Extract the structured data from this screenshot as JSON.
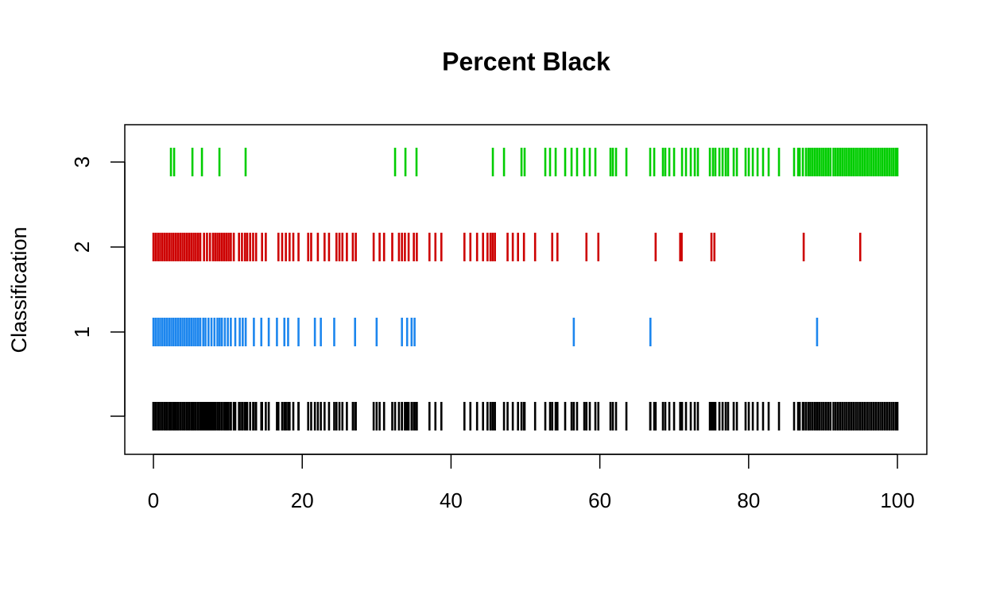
{
  "chart_data": {
    "type": "strip",
    "title": "Percent Black",
    "y_label": "Classification",
    "categories": [
      null,
      "1",
      "2",
      "3"
    ],
    "combined_color": "#000000",
    "xlim": [
      -3.85,
      103.95
    ],
    "xticks": [
      0,
      20,
      40,
      60,
      80,
      100
    ],
    "series": [
      {
        "color": "#1C86EE",
        "values": [
          0,
          0.3,
          0.6,
          0.9,
          1.2,
          1.5,
          1.8,
          2.1,
          2.4,
          2.7,
          3.0,
          3.3,
          3.6,
          3.9,
          4.2,
          4.5,
          4.8,
          5.1,
          5.4,
          5.7,
          6.0,
          6.3,
          6.7,
          7.0,
          7.4,
          7.8,
          8.2,
          8.6,
          8.9,
          9.2,
          9.6,
          10.0,
          10.4,
          11.0,
          11.6,
          12.0,
          12.4,
          13.5,
          14.5,
          15.5,
          16.6,
          17.6,
          18.1,
          19.5,
          21.7,
          22.5,
          24.3,
          27.1,
          30.0,
          33.4,
          34.1,
          34.7,
          35.1,
          56.5,
          66.8,
          89.2
        ]
      },
      {
        "color": "#CD0000",
        "values": [
          0,
          0.3,
          0.6,
          0.9,
          1.2,
          1.5,
          1.8,
          2.1,
          2.4,
          2.7,
          3.0,
          3.3,
          3.6,
          3.9,
          4.2,
          4.5,
          4.8,
          5.1,
          5.4,
          5.7,
          6.0,
          6.3,
          6.8,
          7.2,
          7.6,
          8.0,
          8.3,
          8.6,
          8.9,
          9.2,
          9.5,
          9.8,
          10.1,
          10.4,
          10.8,
          11.5,
          11.9,
          12.3,
          12.6,
          13.0,
          13.4,
          13.8,
          14.6,
          15.1,
          16.8,
          17.3,
          17.8,
          18.3,
          18.8,
          19.5,
          20.8,
          21.2,
          22.1,
          23.0,
          23.6,
          24.6,
          25.0,
          25.4,
          26.0,
          26.8,
          27.2,
          29.6,
          30.4,
          31.0,
          32.1,
          33.0,
          33.4,
          33.8,
          34.3,
          35.0,
          35.4,
          37.1,
          37.9,
          38.7,
          41.8,
          42.6,
          43.5,
          44.3,
          44.9,
          45.3,
          45.6,
          45.9,
          47.6,
          48.3,
          49.0,
          49.8,
          51.3,
          53.6,
          54.3,
          58.2,
          59.8,
          67.5,
          70.8,
          71.0,
          75.0,
          75.4,
          87.4,
          95.0
        ]
      },
      {
        "color": "#00CD00",
        "values": [
          2.35,
          2.78,
          5.24,
          6.52,
          8.87,
          12.39,
          32.48,
          33.87,
          35.36,
          45.62,
          47.12,
          49.47,
          49.89,
          52.67,
          53.31,
          54.06,
          55.34,
          56.2,
          56.94,
          57.91,
          58.65,
          59.4,
          61.43,
          61.75,
          62.18,
          63.57,
          66.77,
          67.31,
          68.48,
          68.8,
          69.34,
          69.98,
          71.05,
          71.58,
          72.22,
          72.76,
          73.18,
          74.79,
          75.21,
          75.53,
          76.07,
          76.5,
          76.92,
          77.24,
          77.99,
          78.42,
          79.59,
          80.02,
          80.56,
          81.2,
          81.94,
          82.69,
          84.08,
          86.11,
          86.65,
          86.86,
          87.29,
          87.71,
          88.03,
          88.3,
          88.6,
          88.9,
          89.2,
          89.5,
          89.8,
          90.1,
          90.4,
          90.7,
          91.0,
          91.4,
          91.7,
          92.0,
          92.3,
          92.6,
          92.9,
          93.2,
          93.5,
          93.8,
          94.1,
          94.4,
          94.7,
          95.0,
          95.3,
          95.6,
          95.9,
          96.2,
          96.5,
          96.8,
          97.1,
          97.4,
          97.7,
          98.0,
          98.3,
          98.6,
          98.9,
          99.2,
          99.5,
          99.8,
          100
        ]
      }
    ]
  }
}
